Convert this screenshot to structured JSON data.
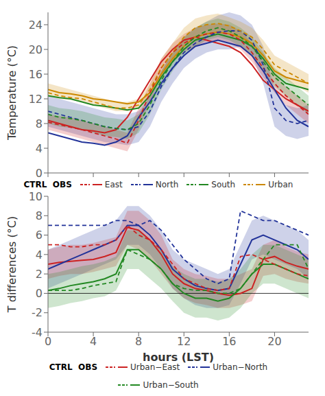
{
  "chart_data": [
    {
      "type": "line",
      "x": [
        0,
        1,
        2,
        3,
        4,
        5,
        6,
        7,
        8,
        9,
        10,
        11,
        12,
        13,
        14,
        15,
        16,
        17,
        18,
        19,
        20,
        21,
        22,
        23
      ],
      "ylabel": "Temperature (°C)",
      "xlim": [
        0,
        23
      ],
      "xticks": [
        0,
        4,
        8,
        12,
        16,
        20
      ],
      "ylim": [
        0,
        26
      ],
      "yticks": [
        0,
        4,
        8,
        12,
        16,
        20,
        24
      ],
      "tick_labels": "y",
      "grid": false,
      "legend": "bottom",
      "legend_title": "CTRL  OBS",
      "series": [
        {
          "name": "North",
          "color": "#223399",
          "type": "band",
          "lower": [
            7.5,
            7.0,
            6.5,
            6.0,
            5.5,
            5.0,
            4.8,
            4.5,
            5.0,
            7.5,
            11.5,
            14.5,
            17.0,
            18.5,
            19.5,
            20.0,
            20.0,
            20.5,
            19.0,
            14.5,
            7.5,
            6.0,
            5.5,
            6.0
          ],
          "upper": [
            12.5,
            12.0,
            11.5,
            11.0,
            10.5,
            10.0,
            9.5,
            9.5,
            10.0,
            12.5,
            16.5,
            19.5,
            22.0,
            23.5,
            24.5,
            25.5,
            26.0,
            25.5,
            24.0,
            20.5,
            13.5,
            11.0,
            10.5,
            11.0
          ]
        },
        {
          "name": "East",
          "color": "#cc2222",
          "type": "band",
          "lower": [
            7.0,
            6.5,
            6.0,
            5.5,
            5.0,
            4.5,
            4.0,
            3.5,
            7.0,
            11.5,
            15.5,
            18.0,
            19.5,
            20.5,
            21.2,
            21.5,
            21.0,
            20.0,
            18.0,
            15.5,
            13.0,
            11.0,
            9.5,
            8.0
          ],
          "upper": [
            9.5,
            9.2,
            9.0,
            8.5,
            8.0,
            7.5,
            7.0,
            6.5,
            10.5,
            14.5,
            18.5,
            21.0,
            22.5,
            23.5,
            24.0,
            24.2,
            24.0,
            23.0,
            21.0,
            18.5,
            16.0,
            14.0,
            12.5,
            11.0
          ]
        },
        {
          "name": "South",
          "color": "#228822",
          "type": "band",
          "lower": [
            8.0,
            7.5,
            7.3,
            7.0,
            6.5,
            6.0,
            5.8,
            5.5,
            6.5,
            9.5,
            13.5,
            16.5,
            19.0,
            20.5,
            21.5,
            22.0,
            21.5,
            20.5,
            19.0,
            16.5,
            14.0,
            12.5,
            11.0,
            9.5
          ],
          "upper": [
            11.0,
            10.5,
            10.3,
            10.0,
            9.5,
            9.0,
            8.8,
            8.5,
            9.5,
            12.5,
            16.5,
            19.5,
            22.0,
            23.5,
            24.5,
            25.0,
            24.5,
            23.5,
            22.0,
            19.5,
            17.0,
            15.5,
            14.0,
            12.5
          ]
        },
        {
          "name": "Urban",
          "color": "#cc8800",
          "type": "band",
          "lower": [
            12.5,
            12.0,
            11.8,
            11.5,
            11.0,
            10.5,
            10.0,
            10.0,
            10.5,
            12.5,
            15.5,
            18.0,
            20.5,
            22.0,
            22.5,
            22.8,
            22.4,
            21.5,
            20.5,
            18.5,
            16.0,
            15.0,
            14.0,
            13.0
          ],
          "upper": [
            14.5,
            14.0,
            13.5,
            13.0,
            12.5,
            12.0,
            11.5,
            11.5,
            12.0,
            14.5,
            18.5,
            21.0,
            23.5,
            25.0,
            25.5,
            25.8,
            25.2,
            24.5,
            23.5,
            21.5,
            19.0,
            18.0,
            17.0,
            16.0
          ]
        },
        {
          "name": "East",
          "color": "#cc2222",
          "line_style": "solid",
          "values": [
            8.5,
            8.0,
            7.5,
            7.0,
            6.8,
            6.5,
            7.0,
            9.0,
            12.0,
            15.0,
            18.0,
            20.0,
            21.5,
            22.0,
            21.5,
            21.0,
            20.5,
            19.5,
            17.5,
            15.0,
            13.5,
            12.0,
            11.0,
            10.0
          ]
        },
        {
          "name": "North",
          "color": "#223399",
          "line_style": "solid",
          "values": [
            6.5,
            6.0,
            5.5,
            5.0,
            4.8,
            4.5,
            5.0,
            6.0,
            9.0,
            11.5,
            14.5,
            17.0,
            19.0,
            20.5,
            21.0,
            21.5,
            21.0,
            20.5,
            19.0,
            16.5,
            13.5,
            10.5,
            8.5,
            7.5
          ]
        },
        {
          "name": "South",
          "color": "#228822",
          "line_style": "solid",
          "values": [
            12.5,
            12.2,
            12.0,
            11.5,
            11.0,
            10.8,
            10.5,
            10.2,
            10.5,
            12.5,
            15.5,
            18.0,
            20.0,
            21.5,
            22.0,
            22.5,
            22.0,
            21.5,
            20.5,
            18.5,
            16.0,
            14.5,
            14.0,
            13.5
          ]
        },
        {
          "name": "Urban",
          "color": "#cc8800",
          "line_style": "solid",
          "values": [
            13.5,
            13.0,
            12.8,
            12.5,
            12.0,
            11.8,
            11.5,
            11.2,
            11.5,
            13.0,
            16.0,
            18.5,
            20.5,
            22.0,
            22.5,
            22.8,
            22.5,
            22.0,
            21.0,
            19.0,
            16.5,
            15.5,
            15.0,
            14.5
          ]
        },
        {
          "name": "East",
          "color": "#cc2222",
          "line_style": "dashed",
          "values": [
            8.2,
            7.8,
            7.4,
            7.0,
            6.5,
            6.0,
            5.5,
            4.8,
            8.5,
            13.0,
            17.0,
            19.5,
            21.0,
            22.0,
            22.5,
            22.8,
            22.5,
            21.5,
            19.5,
            17.0,
            14.5,
            12.5,
            11.0,
            9.5
          ]
        },
        {
          "name": "North",
          "color": "#223399",
          "line_style": "dashed",
          "values": [
            10.0,
            9.5,
            9.0,
            8.5,
            8.0,
            7.5,
            7.2,
            7.0,
            7.5,
            10.0,
            14.0,
            17.0,
            19.5,
            21.0,
            22.0,
            22.8,
            23.0,
            23.0,
            21.5,
            17.5,
            10.5,
            8.5,
            8.0,
            8.5
          ]
        },
        {
          "name": "South",
          "color": "#228822",
          "line_style": "dashed",
          "values": [
            9.5,
            9.0,
            8.8,
            8.5,
            8.0,
            7.5,
            7.2,
            7.0,
            8.0,
            11.0,
            15.0,
            18.0,
            20.5,
            22.0,
            23.0,
            23.5,
            23.0,
            22.0,
            20.5,
            18.0,
            15.5,
            14.0,
            12.5,
            11.0
          ]
        },
        {
          "name": "Urban",
          "color": "#cc8800",
          "line_style": "dashed",
          "values": [
            13.0,
            12.5,
            12.2,
            12.0,
            11.5,
            11.0,
            10.5,
            10.5,
            11.0,
            13.5,
            17.0,
            19.5,
            22.0,
            23.5,
            24.0,
            24.2,
            23.8,
            23.0,
            22.0,
            20.0,
            17.5,
            16.5,
            15.5,
            14.5
          ]
        }
      ]
    },
    {
      "type": "line",
      "x": [
        0,
        1,
        2,
        3,
        4,
        5,
        6,
        7,
        8,
        9,
        10,
        11,
        12,
        13,
        14,
        15,
        16,
        17,
        18,
        19,
        20,
        21,
        22,
        23
      ],
      "xlabel": "hours (LST)",
      "ylabel": "T differences (°C)",
      "xlim": [
        0,
        23
      ],
      "xticks": [
        0,
        4,
        8,
        12,
        16,
        20
      ],
      "ylim": [
        -4,
        10
      ],
      "yticks": [
        -4,
        -2,
        0,
        2,
        4,
        6,
        8,
        10
      ],
      "grid": false,
      "hlines": [
        0
      ],
      "legend": "bottom",
      "legend_title": "CTRL  OBS",
      "series": [
        {
          "name": "Urban−North",
          "color": "#223399",
          "type": "band",
          "lower": [
            0.5,
            1.0,
            1.5,
            2.0,
            2.5,
            3.0,
            3.5,
            5.0,
            5.0,
            4.0,
            2.5,
            0.5,
            -0.5,
            -1.2,
            -1.5,
            -1.5,
            -1.2,
            1.0,
            3.5,
            4.0,
            3.5,
            3.0,
            2.5,
            1.5
          ],
          "upper": [
            4.5,
            5.0,
            5.5,
            6.0,
            6.5,
            7.0,
            7.5,
            9.0,
            9.0,
            8.0,
            6.5,
            4.5,
            3.5,
            3.0,
            2.5,
            2.0,
            2.5,
            5.0,
            7.5,
            8.0,
            7.5,
            7.0,
            6.5,
            5.5
          ]
        },
        {
          "name": "Urban−East",
          "color": "#cc2222",
          "type": "band",
          "lower": [
            1.5,
            1.8,
            2.0,
            2.0,
            2.2,
            2.5,
            2.8,
            5.0,
            4.5,
            3.5,
            2.0,
            0.5,
            -0.5,
            -1.0,
            -1.2,
            -1.5,
            -1.5,
            -1.2,
            -0.8,
            1.8,
            2.0,
            1.5,
            1.2,
            1.0
          ],
          "upper": [
            4.5,
            4.8,
            5.0,
            5.0,
            5.2,
            5.5,
            5.8,
            8.5,
            8.5,
            7.5,
            6.0,
            3.5,
            2.5,
            2.0,
            1.8,
            1.5,
            1.5,
            2.0,
            2.5,
            5.0,
            5.5,
            4.8,
            4.3,
            4.0
          ]
        },
        {
          "name": "Urban−South",
          "color": "#228822",
          "type": "band",
          "lower": [
            -1.5,
            -1.3,
            -1.0,
            -0.8,
            -0.5,
            -0.3,
            0.3,
            2.5,
            2.5,
            1.5,
            0.5,
            -0.8,
            -2.0,
            -2.5,
            -2.5,
            -2.8,
            -2.5,
            -1.5,
            0.0,
            1.0,
            1.0,
            0.5,
            0.0,
            -0.5
          ],
          "upper": [
            2.0,
            2.2,
            2.5,
            2.8,
            3.0,
            3.3,
            3.8,
            6.5,
            6.5,
            5.5,
            4.5,
            2.8,
            2.0,
            1.5,
            1.5,
            1.2,
            1.5,
            2.5,
            4.0,
            5.0,
            5.0,
            4.5,
            4.0,
            3.5
          ]
        },
        {
          "name": "Urban−East",
          "color": "#cc2222",
          "line_style": "solid",
          "values": [
            3.0,
            3.2,
            3.3,
            3.4,
            3.5,
            3.8,
            4.2,
            6.8,
            6.5,
            5.5,
            4.0,
            2.0,
            1.0,
            0.5,
            0.3,
            0.0,
            -0.2,
            0.0,
            0.5,
            3.5,
            3.8,
            3.2,
            2.8,
            2.5
          ]
        },
        {
          "name": "Urban−North",
          "color": "#223399",
          "line_style": "solid",
          "values": [
            2.5,
            3.0,
            3.5,
            4.0,
            4.5,
            5.0,
            5.5,
            7.0,
            7.0,
            6.0,
            4.5,
            2.5,
            1.5,
            0.8,
            0.5,
            0.3,
            0.5,
            3.0,
            5.5,
            6.0,
            5.5,
            5.0,
            4.5,
            3.5
          ]
        },
        {
          "name": "Urban−South",
          "color": "#228822",
          "line_style": "solid",
          "values": [
            0.3,
            0.5,
            0.8,
            1.0,
            1.2,
            1.5,
            2.0,
            4.5,
            4.5,
            3.5,
            2.5,
            1.0,
            0.0,
            -0.5,
            -0.5,
            -0.8,
            -0.5,
            0.5,
            2.0,
            3.0,
            3.0,
            2.5,
            2.0,
            1.5
          ]
        },
        {
          "name": "Urban−East",
          "color": "#cc2222",
          "line_style": "dashed",
          "values": [
            5.0,
            5.0,
            4.8,
            4.8,
            5.0,
            5.0,
            5.5,
            7.0,
            6.0,
            5.5,
            4.5,
            3.0,
            1.5,
            1.0,
            0.5,
            0.3,
            0.5,
            3.8,
            4.0,
            3.5,
            3.0,
            2.5,
            2.0,
            1.8
          ]
        },
        {
          "name": "Urban−North",
          "color": "#223399",
          "line_style": "dashed",
          "values": [
            7.0,
            7.0,
            7.0,
            7.0,
            7.0,
            7.0,
            7.5,
            7.5,
            7.0,
            7.5,
            6.5,
            5.0,
            3.5,
            2.5,
            1.5,
            1.0,
            1.5,
            8.5,
            8.0,
            7.5,
            7.5,
            7.0,
            6.5,
            6.0
          ]
        },
        {
          "name": "Urban−South",
          "color": "#228822",
          "line_style": "dashed",
          "values": [
            0.3,
            0.3,
            0.3,
            0.5,
            0.8,
            1.0,
            1.2,
            4.5,
            4.0,
            3.5,
            2.5,
            1.0,
            0.5,
            0.3,
            0.3,
            0.0,
            0.0,
            0.5,
            2.0,
            3.5,
            5.0,
            5.0,
            5.0,
            2.5
          ]
        }
      ]
    }
  ]
}
